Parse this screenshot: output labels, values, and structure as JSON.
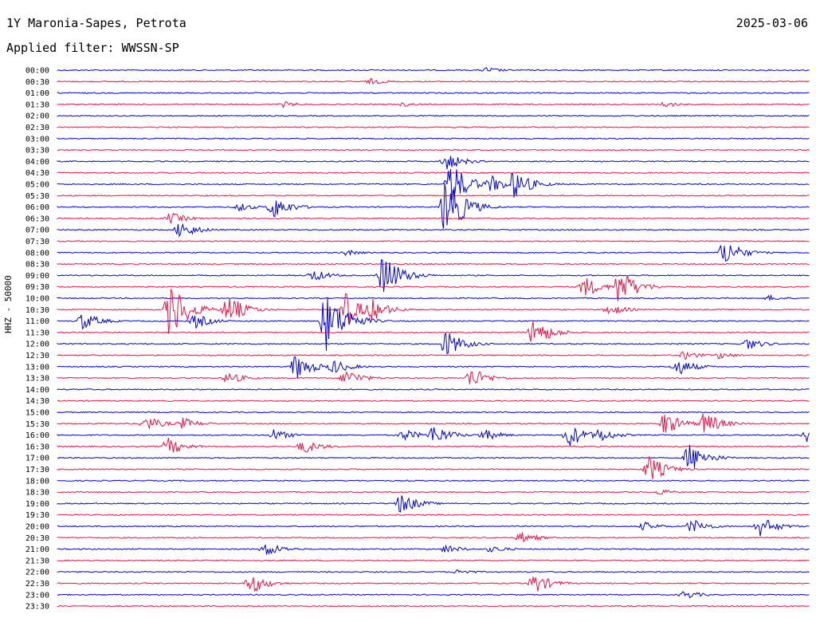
{
  "header": {
    "station": "1Y Maronia-Sapes, Petrota",
    "date": "2025-03-06",
    "filter": "Applied filter: WWSSN-SP",
    "channel": "HHZ - 50000"
  },
  "colors": {
    "blue": "#0000dd",
    "red": "#ee1144"
  },
  "chart_data": {
    "type": "line",
    "title": "1Y Maronia-Sapes, Petrota",
    "ylabel": "HHZ - 50000",
    "xlim_minutes": [
      0,
      30
    ],
    "series_color_cycle": [
      "blue",
      "red"
    ],
    "rows": [
      {
        "label": "00:00",
        "color": "blue",
        "events": [
          {
            "t": 17.1,
            "amp": 4
          }
        ]
      },
      {
        "label": "00:30",
        "color": "red",
        "events": [
          {
            "t": 12.5,
            "amp": 4
          }
        ]
      },
      {
        "label": "01:00",
        "color": "blue",
        "events": []
      },
      {
        "label": "01:30",
        "color": "red",
        "events": [
          {
            "t": 9.0,
            "amp": 4
          },
          {
            "t": 13.8,
            "amp": 3
          },
          {
            "t": 24.2,
            "amp": 4
          }
        ]
      },
      {
        "label": "02:00",
        "color": "blue",
        "events": []
      },
      {
        "label": "02:30",
        "color": "red",
        "events": []
      },
      {
        "label": "03:00",
        "color": "blue",
        "events": []
      },
      {
        "label": "03:30",
        "color": "red",
        "events": []
      },
      {
        "label": "04:00",
        "color": "blue",
        "events": [
          {
            "t": 15.5,
            "amp": 12
          }
        ]
      },
      {
        "label": "04:30",
        "color": "red",
        "events": []
      },
      {
        "label": "05:00",
        "color": "blue",
        "events": [
          {
            "t": 15.7,
            "amp": 30
          },
          {
            "t": 17.3,
            "amp": 12
          },
          {
            "t": 18.2,
            "amp": 20
          }
        ]
      },
      {
        "label": "05:30",
        "color": "red",
        "events": []
      },
      {
        "label": "06:00",
        "color": "blue",
        "events": [
          {
            "t": 7.2,
            "amp": 6
          },
          {
            "t": 8.6,
            "amp": 16
          },
          {
            "t": 15.5,
            "amp": 44
          },
          {
            "t": 16.3,
            "amp": 10
          }
        ]
      },
      {
        "label": "06:30",
        "color": "red",
        "events": [
          {
            "t": 4.5,
            "amp": 8
          }
        ]
      },
      {
        "label": "07:00",
        "color": "blue",
        "events": [
          {
            "t": 4.9,
            "amp": 12
          }
        ]
      },
      {
        "label": "07:30",
        "color": "red",
        "events": []
      },
      {
        "label": "08:00",
        "color": "blue",
        "events": [
          {
            "t": 11.5,
            "amp": 4
          },
          {
            "t": 26.6,
            "amp": 18
          }
        ]
      },
      {
        "label": "08:30",
        "color": "red",
        "events": []
      },
      {
        "label": "09:00",
        "color": "blue",
        "events": [
          {
            "t": 13.0,
            "amp": 30
          },
          {
            "t": 10.2,
            "amp": 8
          }
        ]
      },
      {
        "label": "09:30",
        "color": "red",
        "events": [
          {
            "t": 21.0,
            "amp": 14
          },
          {
            "t": 22.4,
            "amp": 26
          }
        ]
      },
      {
        "label": "10:00",
        "color": "blue",
        "events": [
          {
            "t": 28.4,
            "amp": 4
          }
        ]
      },
      {
        "label": "10:30",
        "color": "red",
        "events": [
          {
            "t": 4.5,
            "amp": 40
          },
          {
            "t": 6.8,
            "amp": 20
          },
          {
            "t": 11.5,
            "amp": 22
          },
          {
            "t": 12.5,
            "amp": 16
          },
          {
            "t": 22.0,
            "amp": 8
          }
        ]
      },
      {
        "label": "11:00",
        "color": "blue",
        "events": [
          {
            "t": 1.0,
            "amp": 12
          },
          {
            "t": 5.5,
            "amp": 10
          },
          {
            "t": 10.7,
            "amp": 40
          },
          {
            "t": 11.5,
            "amp": 16
          }
        ]
      },
      {
        "label": "11:30",
        "color": "red",
        "events": [
          {
            "t": 19.0,
            "amp": 20
          }
        ]
      },
      {
        "label": "12:00",
        "color": "blue",
        "events": [
          {
            "t": 15.5,
            "amp": 18
          },
          {
            "t": 27.5,
            "amp": 8
          }
        ]
      },
      {
        "label": "12:30",
        "color": "red",
        "events": [
          {
            "t": 25.0,
            "amp": 6
          },
          {
            "t": 26.4,
            "amp": 5
          }
        ]
      },
      {
        "label": "13:00",
        "color": "blue",
        "events": [
          {
            "t": 9.5,
            "amp": 18
          },
          {
            "t": 11.0,
            "amp": 10
          },
          {
            "t": 24.7,
            "amp": 12
          }
        ]
      },
      {
        "label": "13:30",
        "color": "red",
        "events": [
          {
            "t": 6.8,
            "amp": 8
          },
          {
            "t": 11.5,
            "amp": 12
          },
          {
            "t": 16.5,
            "amp": 14
          }
        ]
      },
      {
        "label": "14:00",
        "color": "blue",
        "events": []
      },
      {
        "label": "14:30",
        "color": "red",
        "events": []
      },
      {
        "label": "15:00",
        "color": "blue",
        "events": []
      },
      {
        "label": "15:30",
        "color": "red",
        "events": [
          {
            "t": 3.5,
            "amp": 10
          },
          {
            "t": 5.0,
            "amp": 8
          },
          {
            "t": 24.2,
            "amp": 16
          },
          {
            "t": 25.8,
            "amp": 16
          }
        ]
      },
      {
        "label": "16:00",
        "color": "blue",
        "events": [
          {
            "t": 8.6,
            "amp": 8
          },
          {
            "t": 13.8,
            "amp": 8
          },
          {
            "t": 15.0,
            "amp": 14
          },
          {
            "t": 17.0,
            "amp": 8
          },
          {
            "t": 20.4,
            "amp": 16
          },
          {
            "t": 21.6,
            "amp": 10
          },
          {
            "t": 29.9,
            "amp": 10
          }
        ]
      },
      {
        "label": "16:30",
        "color": "red",
        "events": [
          {
            "t": 4.4,
            "amp": 12
          },
          {
            "t": 9.8,
            "amp": 10
          }
        ]
      },
      {
        "label": "17:00",
        "color": "blue",
        "events": [
          {
            "t": 25.2,
            "amp": 20
          }
        ]
      },
      {
        "label": "17:30",
        "color": "red",
        "events": [
          {
            "t": 23.6,
            "amp": 18
          }
        ]
      },
      {
        "label": "18:00",
        "color": "blue",
        "events": []
      },
      {
        "label": "18:30",
        "color": "red",
        "events": [
          {
            "t": 24.0,
            "amp": 4
          }
        ]
      },
      {
        "label": "19:00",
        "color": "blue",
        "events": [
          {
            "t": 13.7,
            "amp": 14
          }
        ]
      },
      {
        "label": "19:30",
        "color": "red",
        "events": []
      },
      {
        "label": "20:00",
        "color": "blue",
        "events": [
          {
            "t": 23.4,
            "amp": 6
          },
          {
            "t": 25.3,
            "amp": 10
          },
          {
            "t": 28.0,
            "amp": 14
          }
        ]
      },
      {
        "label": "20:30",
        "color": "red",
        "events": [
          {
            "t": 18.5,
            "amp": 8
          }
        ]
      },
      {
        "label": "21:00",
        "color": "blue",
        "events": [
          {
            "t": 8.3,
            "amp": 10
          },
          {
            "t": 15.5,
            "amp": 6
          },
          {
            "t": 17.3,
            "amp": 5
          }
        ]
      },
      {
        "label": "21:30",
        "color": "red",
        "events": []
      },
      {
        "label": "22:00",
        "color": "blue",
        "events": [
          {
            "t": 16.0,
            "amp": 4
          }
        ]
      },
      {
        "label": "22:30",
        "color": "red",
        "events": [
          {
            "t": 7.7,
            "amp": 14
          },
          {
            "t": 19.0,
            "amp": 14
          }
        ]
      },
      {
        "label": "23:00",
        "color": "blue",
        "events": [
          {
            "t": 25.0,
            "amp": 6
          }
        ]
      },
      {
        "label": "23:30",
        "color": "red",
        "events": []
      }
    ]
  }
}
